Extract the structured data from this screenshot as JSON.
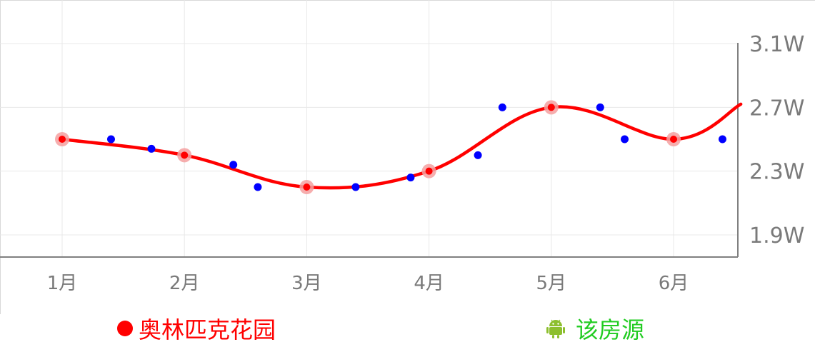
{
  "colors": {
    "series_line": "#ff0000",
    "series_marker_halo": "#f4a0a0",
    "points": "#0000ff",
    "legend_primary": "#ff0000",
    "legend_secondary": "#22cc22",
    "axis": "#808080",
    "grid": "#e8e8e8"
  },
  "chart_data": {
    "type": "line",
    "x_ticks": [
      "1月",
      "2月",
      "3月",
      "4月",
      "5月",
      "6月"
    ],
    "y_ticks": [
      "1.9W",
      "2.3W",
      "2.7W",
      "3.1W"
    ],
    "ylim": [
      1.9,
      3.1
    ],
    "xlim": [
      1,
      6.55
    ],
    "grid": true,
    "legend_position": "bottom",
    "series": [
      {
        "name": "奥林匹克花园",
        "style": "smooth-line",
        "x": [
          1,
          2,
          3,
          4,
          5,
          6,
          6.55
        ],
        "y": [
          2.5,
          2.4,
          2.2,
          2.3,
          2.7,
          2.5,
          2.72
        ],
        "markers": [
          {
            "x": 1,
            "y": 2.5
          },
          {
            "x": 2,
            "y": 2.4
          },
          {
            "x": 3,
            "y": 2.2
          },
          {
            "x": 4,
            "y": 2.3
          },
          {
            "x": 5,
            "y": 2.7
          },
          {
            "x": 6,
            "y": 2.5
          }
        ]
      },
      {
        "name": "该房源",
        "style": "scatter",
        "x": [
          1.4,
          1.73,
          2.4,
          2.6,
          3.4,
          3.85,
          4.4,
          4.6,
          5.4,
          5.6,
          6.4
        ],
        "y": [
          2.5,
          2.44,
          2.34,
          2.2,
          2.2,
          2.26,
          2.4,
          2.7,
          2.7,
          2.5,
          2.5
        ]
      }
    ]
  },
  "legend": {
    "primary_label": "奥林匹克花园",
    "secondary_label": "该房源",
    "secondary_icon": "android-icon"
  }
}
